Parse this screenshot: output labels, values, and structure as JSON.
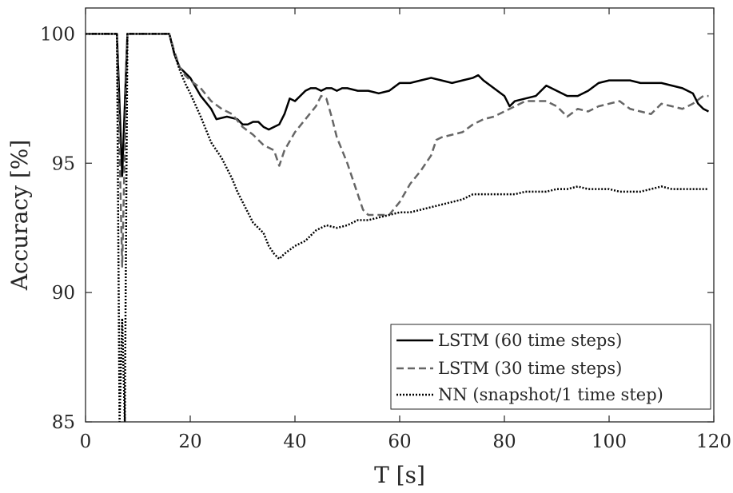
{
  "chart_data": {
    "type": "line",
    "title": "",
    "xlabel": "T [s]",
    "ylabel": "Accuracy [%]",
    "xlim": [
      0,
      120
    ],
    "ylim": [
      85,
      101
    ],
    "xticks": [
      "0",
      "20",
      "40",
      "60",
      "80",
      "100",
      "120"
    ],
    "yticks": [
      "85",
      "90",
      "95",
      "100"
    ],
    "grid": false,
    "legend_position": "bottom-right",
    "series": [
      {
        "name": "LSTM (60 time steps)",
        "color": "#000000",
        "style": "solid",
        "x": [
          0,
          6,
          7,
          8,
          9,
          10,
          12,
          15,
          16,
          17,
          18,
          19,
          20,
          22,
          24,
          25,
          27,
          29,
          30,
          31,
          32,
          33,
          34,
          35,
          36,
          37,
          38,
          39,
          40,
          41,
          42,
          43,
          44,
          45,
          46,
          47,
          48,
          49,
          50,
          52,
          54,
          56,
          58,
          60,
          62,
          64,
          66,
          68,
          70,
          72,
          74,
          75,
          76,
          78,
          80,
          81,
          82,
          84,
          86,
          88,
          90,
          92,
          94,
          96,
          98,
          100,
          102,
          104,
          106,
          108,
          110,
          112,
          114,
          116,
          117,
          118,
          119
        ],
        "y": [
          100,
          100,
          94.5,
          100,
          100,
          100,
          100,
          100,
          100,
          99.2,
          98.7,
          98.5,
          98.3,
          97.6,
          97.1,
          96.7,
          96.8,
          96.7,
          96.5,
          96.5,
          96.6,
          96.6,
          96.4,
          96.3,
          96.4,
          96.5,
          96.9,
          97.5,
          97.4,
          97.6,
          97.8,
          97.9,
          97.9,
          97.8,
          97.9,
          97.9,
          97.8,
          97.9,
          97.9,
          97.8,
          97.8,
          97.7,
          97.8,
          98.1,
          98.1,
          98.2,
          98.3,
          98.2,
          98.1,
          98.2,
          98.3,
          98.4,
          98.2,
          97.9,
          97.6,
          97.2,
          97.4,
          97.5,
          97.6,
          98.0,
          97.8,
          97.6,
          97.6,
          97.8,
          98.1,
          98.2,
          98.2,
          98.2,
          98.1,
          98.1,
          98.1,
          98.0,
          97.9,
          97.7,
          97.3,
          97.1,
          97.0
        ]
      },
      {
        "name": "LSTM (30 time steps)",
        "color": "#666666",
        "style": "dashed",
        "x": [
          0,
          6,
          7,
          8,
          9,
          10,
          12,
          15,
          16,
          17,
          18,
          19,
          20,
          22,
          24,
          26,
          28,
          30,
          32,
          34,
          36,
          37,
          38,
          40,
          42,
          44,
          45,
          46,
          47,
          48,
          50,
          52,
          53,
          54,
          56,
          58,
          60,
          62,
          64,
          66,
          67,
          68,
          70,
          72,
          74,
          76,
          78,
          80,
          82,
          84,
          86,
          88,
          90,
          92,
          94,
          96,
          98,
          100,
          102,
          104,
          106,
          108,
          110,
          112,
          114,
          116,
          118,
          119
        ],
        "y": [
          100,
          100,
          91.0,
          100,
          100,
          100,
          100,
          100,
          100,
          99.3,
          98.7,
          98.4,
          98.2,
          97.9,
          97.4,
          97.1,
          96.9,
          96.4,
          96.1,
          95.7,
          95.5,
          94.9,
          95.5,
          96.2,
          96.7,
          97.2,
          97.6,
          97.5,
          96.8,
          96.0,
          95.0,
          93.8,
          93.2,
          93.0,
          93.0,
          93.0,
          93.5,
          94.2,
          94.7,
          95.3,
          95.9,
          96.0,
          96.1,
          96.2,
          96.5,
          96.7,
          96.8,
          97.0,
          97.2,
          97.4,
          97.4,
          97.4,
          97.2,
          96.8,
          97.1,
          97.0,
          97.2,
          97.3,
          97.4,
          97.1,
          97.0,
          96.9,
          97.3,
          97.2,
          97.1,
          97.3,
          97.6,
          97.6
        ]
      },
      {
        "name": "NN (snapshot/1 time step)",
        "color": "#000000",
        "style": "dotted",
        "x": [
          0,
          6,
          6.5,
          7,
          7.5,
          8,
          9,
          10,
          12,
          15,
          16,
          17,
          18,
          19,
          20,
          22,
          24,
          26,
          28,
          29,
          30,
          32,
          34,
          35,
          36,
          37,
          38,
          40,
          42,
          43,
          44,
          46,
          48,
          50,
          52,
          54,
          56,
          58,
          60,
          62,
          64,
          66,
          68,
          70,
          72,
          74,
          76,
          78,
          80,
          82,
          84,
          86,
          88,
          90,
          92,
          94,
          96,
          98,
          100,
          102,
          104,
          106,
          108,
          110,
          112,
          114,
          116,
          118,
          119
        ],
        "y": [
          100,
          100,
          85,
          89,
          85,
          100,
          100,
          100,
          100,
          100,
          100,
          99.2,
          98.6,
          98.1,
          97.7,
          96.8,
          95.8,
          95.2,
          94.4,
          93.9,
          93.5,
          92.7,
          92.3,
          91.8,
          91.5,
          91.3,
          91.5,
          91.8,
          92.0,
          92.2,
          92.4,
          92.6,
          92.5,
          92.6,
          92.8,
          92.8,
          92.9,
          93.0,
          93.1,
          93.1,
          93.2,
          93.3,
          93.4,
          93.5,
          93.6,
          93.8,
          93.8,
          93.8,
          93.8,
          93.8,
          93.9,
          93.9,
          93.9,
          94.0,
          94.0,
          94.1,
          94.0,
          94.0,
          94.0,
          93.9,
          93.9,
          93.9,
          94.0,
          94.1,
          94.0,
          94.0,
          94.0,
          94.0,
          94.0
        ]
      }
    ]
  }
}
